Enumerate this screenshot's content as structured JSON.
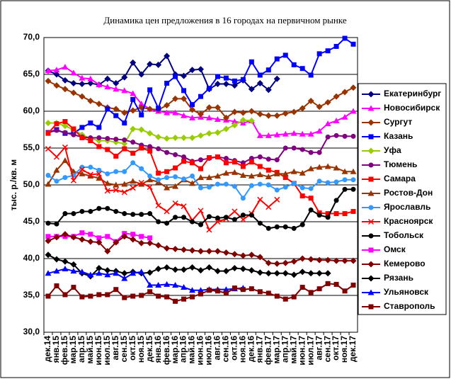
{
  "chart_data": {
    "type": "line",
    "title": "Динамика цен предложения в 16 городах на первичном рынке",
    "y_label": "тыс. р./кв. м",
    "categories": [
      "дек.14",
      "янв.15",
      "фев.15",
      "мар.15",
      "апр.15",
      "май.15",
      "июн.15",
      "июл.15",
      "авг.15",
      "сен.15",
      "окт.15",
      "ноя.15",
      "дек.15",
      "янв.16",
      "фев.16",
      "мар.16",
      "апр.16",
      "май.16",
      "июн.16",
      "июл.16",
      "авг.16",
      "сен.16",
      "окт.16",
      "ноя.16",
      "дек.16",
      "янв.17",
      "фев.17",
      "мар.17",
      "апр.17",
      "май.17",
      "июн.17",
      "июл.17",
      "авг.17",
      "сен.17",
      "окт.17",
      "ноя.17",
      "дек.17"
    ],
    "ylim": [
      30,
      70
    ],
    "yticks": [
      {
        "value": 30,
        "label": "30,0"
      },
      {
        "value": 35,
        "label": "35,0"
      },
      {
        "value": 40,
        "label": "40,0"
      },
      {
        "value": 45,
        "label": "45,0"
      },
      {
        "value": 50,
        "label": "50,0"
      },
      {
        "value": 55,
        "label": "55,0"
      },
      {
        "value": 60,
        "label": "60,0"
      },
      {
        "value": 65,
        "label": "65,0"
      },
      {
        "value": 70,
        "label": "70,0"
      }
    ],
    "grid": true,
    "legend": "right",
    "series": [
      {
        "name": "Екатеринбург",
        "color": "#000080",
        "marker": "diamond",
        "values": [
          65.5,
          65.0,
          64.2,
          63.8,
          63.7,
          63.8,
          63.6,
          64.4,
          63.8,
          64.6,
          66.6,
          65.0,
          66.4,
          66.3,
          67.5,
          65.0,
          64.8,
          65.6,
          65.7,
          63.0,
          63.7,
          63.7,
          63.5,
          64.2,
          63.0,
          63.8,
          62.9,
          64.4,
          null,
          null,
          null,
          null,
          null,
          null,
          null,
          null,
          null
        ]
      },
      {
        "name": "Новосибирск",
        "color": "#ff00ff",
        "marker": "triangle",
        "values": [
          65.5,
          65.6,
          66.0,
          65.2,
          64.5,
          64.4,
          63.6,
          63.3,
          63.0,
          62.8,
          62.4,
          61.0,
          60.3,
          60.0,
          59.8,
          59.8,
          59.4,
          59.1,
          59.2,
          59.1,
          58.9,
          58.8,
          58.6,
          58.4,
          58.7,
          56.7,
          56.7,
          56.8,
          56.9,
          57.0,
          56.9,
          56.9,
          57.3,
          58.3,
          58.7,
          59.2,
          60.0
        ]
      },
      {
        "name": "Сургут",
        "color": "#993300",
        "marker": "diamond",
        "values": [
          64.1,
          63.5,
          63.0,
          62.5,
          62.0,
          61.4,
          61.0,
          60.5,
          60.3,
          59.8,
          60.1,
          60.5,
          60.3,
          60.2,
          60.8,
          61.7,
          61.7,
          60.2,
          59.6,
          60.5,
          60.5,
          59.1,
          59.9,
          59.8,
          60.0,
          59.6,
          59.4,
          59.4,
          59.7,
          59.9,
          60.4,
          61.4,
          60.6,
          61.2,
          62.0,
          62.6,
          63.2
        ]
      },
      {
        "name": "Казань",
        "color": "#0000ff",
        "marker": "square",
        "values": [
          57.1,
          57.5,
          57.0,
          57.0,
          57.8,
          58.4,
          57.8,
          60.3,
          59.4,
          58.4,
          61.6,
          59.5,
          62.9,
          60.4,
          63.8,
          64.7,
          62.8,
          60.9,
          62.0,
          63.1,
          64.7,
          64.5,
          64.1,
          64.3,
          66.7,
          64.9,
          65.6,
          67.1,
          67.6,
          66.3,
          65.8,
          64.9,
          67.8,
          68.2,
          68.8,
          69.9,
          69.1
        ]
      },
      {
        "name": "Уфа",
        "color": "#99cc00",
        "marker": "diamond",
        "values": [
          58.4,
          58.4,
          58.0,
          57.5,
          56.8,
          56.3,
          56.0,
          56.0,
          55.8,
          55.6,
          57.6,
          57.5,
          57.0,
          56.5,
          56.3,
          56.4,
          56.4,
          56.4,
          56.7,
          57.0,
          57.1,
          57.6,
          58.1,
          58.8,
          58.7,
          null,
          null,
          null,
          null,
          null,
          null,
          null,
          null,
          null,
          null,
          null,
          null
        ]
      },
      {
        "name": "Тюмень",
        "color": "#800080",
        "marker": "circle",
        "values": [
          57.1,
          57.4,
          57.1,
          56.8,
          56.5,
          56.4,
          56.4,
          56.3,
          56.2,
          56.1,
          55.8,
          55.4,
          55.2,
          54.9,
          54.4,
          54.1,
          53.8,
          53.2,
          53.4,
          53.6,
          53.8,
          53.6,
          53.3,
          53.0,
          53.6,
          53.8,
          53.5,
          53.4,
          55.0,
          55.0,
          54.8,
          54.4,
          54.4,
          56.5,
          56.7,
          56.6,
          56.6
        ]
      },
      {
        "name": "Самара",
        "color": "#ff0000",
        "marker": "square",
        "values": [
          57.0,
          58.3,
          58.6,
          57.6,
          56.4,
          56.0,
          55.2,
          54.8,
          53.9,
          54.9,
          54.3,
          55.0,
          54.6,
          51.6,
          51.8,
          52.3,
          53.2,
          53.0,
          52.2,
          53.7,
          53.8,
          53.0,
          53.1,
          52.5,
          53.1,
          52.5,
          52.0,
          51.7,
          51.0,
          50.2,
          48.5,
          48.2,
          46.2,
          46.1,
          46.1,
          46.1,
          46.4
        ]
      },
      {
        "name": "Ростов-Дон",
        "color": "#993300",
        "marker": "triangle",
        "values": [
          50.1,
          52.0,
          53.3,
          51.8,
          51.5,
          51.2,
          50.9,
          50.2,
          50.0,
          50.1,
          50.5,
          50.1,
          50.7,
          50.4,
          49.6,
          49.8,
          50.7,
          50.2,
          51.0,
          51.0,
          51.2,
          51.6,
          51.7,
          51.3,
          51.2,
          51.4,
          51.1,
          51.5,
          51.5,
          51.8,
          51.6,
          52.2,
          52.4,
          52.5,
          52.3,
          51.8,
          51.8
        ]
      },
      {
        "name": "Ярославль",
        "color": "#3399ff",
        "marker": "circle",
        "values": [
          51.3,
          50.5,
          51.0,
          51.3,
          52.4,
          52.4,
          52.0,
          51.5,
          51.8,
          51.8,
          53.0,
          52.2,
          51.2,
          50.7,
          51.0,
          51.1,
          50.8,
          51.2,
          49.6,
          49.7,
          50.1,
          50.1,
          49.8,
          48.2,
          49.9,
          50.1,
          50.0,
          49.3,
          49.7,
          50.2,
          49.6,
          49.5,
          50.5,
          50.3,
          50.4,
          50.7,
          50.7
        ]
      },
      {
        "name": "Красноярск",
        "color": "#ff0000",
        "marker": "x",
        "values": [
          54.9,
          53.8,
          55.1,
          50.6,
          52.1,
          51.4,
          51.5,
          49.2,
          49.3,
          49.0,
          49.6,
          50.3,
          49.7,
          47.2,
          46.4,
          47.5,
          47.1,
          45.2,
          46.5,
          43.9,
          45.0,
          45.4,
          46.4,
          45.3,
          46.1,
          48.0,
          47.0,
          48.0,
          null,
          null,
          null,
          null,
          null,
          null,
          null,
          null,
          null
        ]
      },
      {
        "name": "Тобольск",
        "color": "#000000",
        "marker": "circle",
        "values": [
          44.8,
          44.7,
          46.1,
          46.1,
          46.4,
          46.4,
          46.8,
          46.8,
          46.4,
          46.1,
          46.0,
          46.0,
          46.1,
          45.0,
          44.8,
          45.6,
          45.6,
          45.0,
          44.6,
          45.7,
          45.5,
          45.6,
          45.3,
          45.9,
          45.9,
          44.8,
          44.1,
          44.3,
          44.3,
          44.1,
          44.6,
          46.6,
          45.9,
          45.6,
          47.9,
          49.4,
          49.4
        ]
      },
      {
        "name": "Омск",
        "color": "#ff00ff",
        "marker": "square",
        "values": [
          43.0,
          43.0,
          43.0,
          43.0,
          43.5,
          43.3,
          42.8,
          43.0,
          42.3,
          43.4,
          43.3,
          43.0,
          42.8,
          null,
          null,
          null,
          null,
          null,
          null,
          null,
          null,
          null,
          null,
          null,
          null,
          null,
          null,
          null,
          null,
          null,
          null,
          null,
          null,
          null,
          null,
          null,
          null
        ]
      },
      {
        "name": "Кемерово",
        "color": "#800000",
        "marker": "diamond",
        "values": [
          42.4,
          42.9,
          43.3,
          42.9,
          42.6,
          42.3,
          42.2,
          41.0,
          42.2,
          43.0,
          42.6,
          42.1,
          42.1,
          41.8,
          41.4,
          41.3,
          41.2,
          41.1,
          41.0,
          41.0,
          41.0,
          40.8,
          40.6,
          40.4,
          40.5,
          40.2,
          39.4,
          39.3,
          39.4,
          39.6,
          40.0,
          39.9,
          39.8,
          39.8,
          39.7,
          39.7,
          39.7
        ]
      },
      {
        "name": "Рязань",
        "color": "#000000",
        "marker": "diamond",
        "values": [
          40.5,
          39.9,
          39.6,
          39.2,
          38.0,
          37.6,
          38.7,
          38.4,
          38.3,
          38.0,
          38.2,
          38.0,
          38.1,
          38.6,
          38.8,
          38.5,
          38.5,
          38.8,
          38.4,
          38.8,
          38.3,
          38.3,
          38.7,
          38.6,
          38.4,
          38.1,
          38.0,
          38.0,
          38.0,
          37.8,
          38.2,
          38.0,
          38.0,
          38.0,
          null,
          null,
          null
        ]
      },
      {
        "name": "Ульяновск",
        "color": "#0000ff",
        "marker": "triangle",
        "values": [
          38.0,
          38.3,
          38.6,
          38.3,
          38.2,
          37.8,
          38.0,
          37.8,
          38.0,
          37.3,
          38.0,
          38.2,
          36.4,
          36.4,
          36.5,
          36.4,
          36.1,
          35.7,
          35.7,
          35.8,
          35.8,
          35.8,
          35.9,
          36.0,
          null,
          null,
          null,
          null,
          null,
          null,
          null,
          null,
          null,
          null,
          null,
          null,
          null
        ]
      },
      {
        "name": "Ставрополь",
        "color": "#800000",
        "marker": "square",
        "values": [
          34.9,
          36.3,
          35.1,
          36.1,
          34.8,
          34.9,
          35.1,
          35.1,
          35.8,
          34.7,
          34.9,
          35.0,
          35.5,
          34.9,
          34.8,
          34.2,
          34.5,
          34.8,
          35.2,
          35.7,
          35.6,
          35.3,
          36.0,
          35.8,
          35.9,
          35.5,
          35.3,
          34.9,
          34.5,
          34.8,
          36.1,
          35.4,
          35.9,
          36.6,
          36.5,
          35.6,
          36.4
        ]
      }
    ]
  }
}
